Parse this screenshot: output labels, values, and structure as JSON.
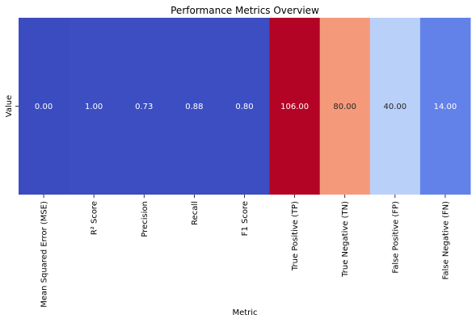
{
  "chart_data": {
    "type": "heatmap",
    "title": "Performance Metrics Overview",
    "xlabel": "Metric",
    "ylabel": "",
    "row_labels": [
      "Value"
    ],
    "categories": [
      "Mean Squared Error (MSE)",
      "R² Score",
      "Precision",
      "Recall",
      "F1 Score",
      "True Positive (TP)",
      "True Negative (TN)",
      "False Positive (FP)",
      "False Negative (FN)"
    ],
    "values": [
      0.0,
      1.0,
      0.73,
      0.88,
      0.8,
      106.0,
      80.0,
      40.0,
      14.0
    ],
    "value_labels": [
      "0.00",
      "1.00",
      "0.73",
      "0.88",
      "0.80",
      "106.00",
      "80.00",
      "40.00",
      "14.00"
    ],
    "colormap": "coolwarm",
    "colors": [
      "#3b4cc0",
      "#3c4ec2",
      "#3c4ec2",
      "#3c4ec2",
      "#3c4ec2",
      "#b40426",
      "#f49a7b",
      "#b9d0f9",
      "#6282ea"
    ],
    "grid": false,
    "legend": "none"
  }
}
